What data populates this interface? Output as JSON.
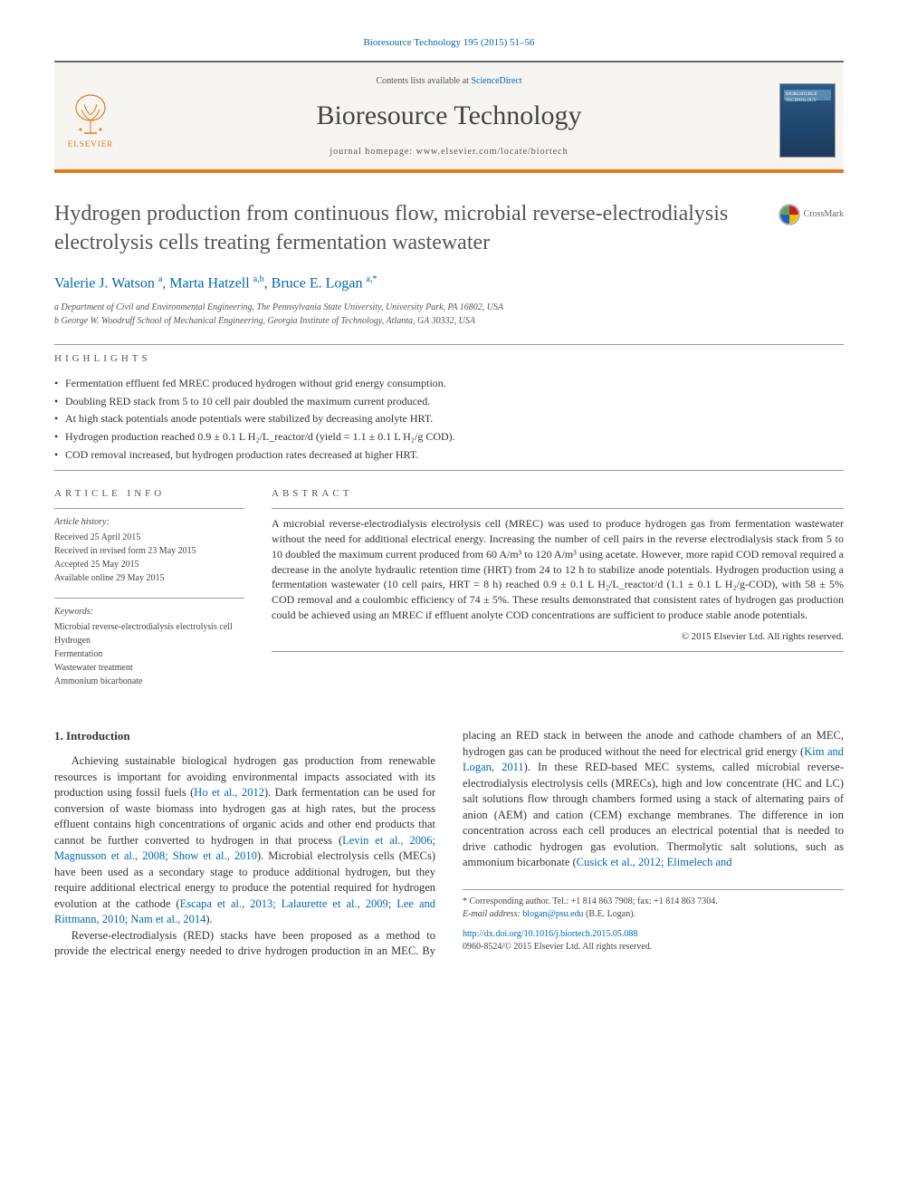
{
  "citation_line": "Bioresource Technology 195 (2015) 51–56",
  "masthead": {
    "contents_prefix": "Contents lists available at ",
    "contents_link": "ScienceDirect",
    "journal_name": "Bioresource Technology",
    "homepage": "journal homepage: www.elsevier.com/locate/biortech",
    "publisher": "ELSEVIER",
    "cover_text": "BIORESOURCE TECHNOLOGY"
  },
  "title": "Hydrogen production from continuous flow, microbial reverse-electrodialysis electrolysis cells treating fermentation wastewater",
  "crossmark": "CrossMark",
  "authors_html": "Valerie J. Watson <sup>a</sup>, Marta Hatzell <sup>a,b</sup>, Bruce E. Logan <sup>a,*</sup>",
  "affiliations": {
    "a": "a Department of Civil and Environmental Engineering, The Pennsylvania State University, University Park, PA 16802, USA",
    "b": "b George W. Woodruff School of Mechanical Engineering, Georgia Institute of Technology, Atlanta, GA 30332, USA"
  },
  "highlights_label": "HIGHLIGHTS",
  "highlights": [
    "Fermentation effluent fed MREC produced hydrogen without grid energy consumption.",
    "Doubling RED stack from 5 to 10 cell pair doubled the maximum current produced.",
    "At high stack potentials anode potentials were stabilized by decreasing anolyte HRT.",
    "Hydrogen production reached 0.9 ± 0.1 L H₂/L_reactor/d (yield = 1.1 ± 0.1 L H₂/g COD).",
    "COD removal increased, but hydrogen production rates decreased at higher HRT."
  ],
  "article_info_label": "ARTICLE INFO",
  "history_label": "Article history:",
  "history": {
    "received": "Received 25 April 2015",
    "revised": "Received in revised form 23 May 2015",
    "accepted": "Accepted 25 May 2015",
    "online": "Available online 29 May 2015"
  },
  "keywords_label": "Keywords:",
  "keywords": [
    "Microbial reverse-electrodialysis electrolysis cell",
    "Hydrogen",
    "Fermentation",
    "Wastewater treatment",
    "Ammonium bicarbonate"
  ],
  "abstract_label": "ABSTRACT",
  "abstract": "A microbial reverse-electrodialysis electrolysis cell (MREC) was used to produce hydrogen gas from fermentation wastewater without the need for additional electrical energy. Increasing the number of cell pairs in the reverse electrodialysis stack from 5 to 10 doubled the maximum current produced from 60 A/m³ to 120 A/m³ using acetate. However, more rapid COD removal required a decrease in the anolyte hydraulic retention time (HRT) from 24 to 12 h to stabilize anode potentials. Hydrogen production using a fermentation wastewater (10 cell pairs, HRT = 8 h) reached 0.9 ± 0.1 L H₂/L_reactor/d (1.1 ± 0.1 L H₂/g-COD), with 58 ± 5% COD removal and a coulombic efficiency of 74 ± 5%. These results demonstrated that consistent rates of hydrogen gas production could be achieved using an MREC if effluent anolyte COD concentrations are sufficient to produce stable anode potentials.",
  "copyright": "© 2015 Elsevier Ltd. All rights reserved.",
  "intro_heading": "1. Introduction",
  "intro_p1_a": "Achieving sustainable biological hydrogen gas production from renewable resources is important for avoiding environmental impacts associated with its production using fossil fuels (",
  "intro_p1_c1": "Ho et al., 2012",
  "intro_p1_b": "). Dark fermentation can be used for conversion of waste biomass into hydrogen gas at high rates, but the process effluent contains high concentrations of organic acids and other end products that cannot be further converted to hydrogen in that process (",
  "intro_p1_c2": "Levin et al., 2006; Magnusson et al., 2008; Show et al., 2010",
  "intro_p1_c": "). Microbial electrolysis cells (MECs) have been used as a secondary stage to produce additional hydrogen, but they require additional electrical energy to produce the potential required for hydrogen evolution at the cathode (",
  "intro_p1_c3": "Escapa et al., 2013; Lalaurette et al., 2009; Lee and Rittmann, 2010; Nam et al., 2014",
  "intro_p1_d": ").",
  "intro_p2_a": "Reverse-electrodialysis (RED) stacks have been proposed as a method to provide the electrical energy needed to drive hydrogen production in an MEC. By placing an RED stack in between the anode and cathode chambers of an MEC, hydrogen gas can be produced without the need for electrical grid energy (",
  "intro_p2_c1": "Kim and Logan, 2011",
  "intro_p2_b": "). In these RED-based MEC systems, called microbial reverse-electrodialysis electrolysis cells (MRECs), high and low concentrate (HC and LC) salt solutions flow through chambers formed using a stack of alternating pairs of anion (AEM) and cation (CEM) exchange membranes. The difference in ion concentration across each cell produces an electrical potential that is needed to drive cathodic hydrogen gas evolution. Thermolytic salt solutions, such as ammonium bicarbonate (",
  "intro_p2_c2": "Cusick et al., 2012; Elimelech and",
  "footnotes": {
    "corr": "* Corresponding author. Tel.: +1 814 863 7908; fax: +1 814 863 7304.",
    "email_label": "E-mail address: ",
    "email": "blogan@psu.edu",
    "email_who": " (B.E. Logan).",
    "doi": "http://dx.doi.org/10.1016/j.biortech.2015.05.088",
    "issn": "0960-8524/© 2015 Elsevier Ltd. All rights reserved."
  },
  "colors": {
    "accent": "#e67817",
    "link": "#0066b3",
    "text": "#333333",
    "muted": "#555555"
  }
}
